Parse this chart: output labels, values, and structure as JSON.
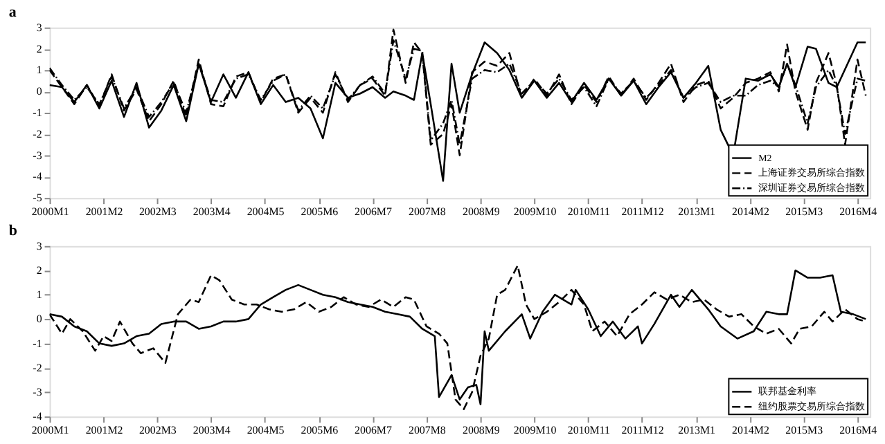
{
  "chart_data": [
    {
      "type": "line",
      "title": "a",
      "xlim": [
        "2000-01",
        "2016-07"
      ],
      "ylim": [
        -5,
        3
      ],
      "yticks": [
        -5,
        -4,
        -3,
        -2,
        -1,
        0,
        1,
        2,
        3
      ],
      "xticks": [
        {
          "value": "2000-01",
          "label": "2000M1"
        },
        {
          "value": "2001-02",
          "label": "2001M2"
        },
        {
          "value": "2002-03",
          "label": "2002M3"
        },
        {
          "value": "2003-04",
          "label": "2003M4"
        },
        {
          "value": "2004-05",
          "label": "2004M5"
        },
        {
          "value": "2005-06",
          "label": "2005M6"
        },
        {
          "value": "2006-07",
          "label": "2006M7"
        },
        {
          "value": "2007-08",
          "label": "2007M8"
        },
        {
          "value": "2008-09",
          "label": "2008M9"
        },
        {
          "value": "2009-10",
          "label": "2009M10"
        },
        {
          "value": "2010-11",
          "label": "2010M11"
        },
        {
          "value": "2011-12",
          "label": "2011M12"
        },
        {
          "value": "2013-01",
          "label": "2013M1"
        },
        {
          "value": "2014-02",
          "label": "2014M2"
        },
        {
          "value": "2015-03",
          "label": "2015M3"
        },
        {
          "value": "2016-04",
          "label": "2016M4"
        }
      ],
      "x": [
        "2000-01",
        "2000-04",
        "2000-07",
        "2000-10",
        "2001-01",
        "2001-04",
        "2001-07",
        "2001-10",
        "2002-01",
        "2002-04",
        "2002-07",
        "2002-10",
        "2003-01",
        "2003-04",
        "2003-07",
        "2003-10",
        "2004-01",
        "2004-04",
        "2004-07",
        "2004-10",
        "2005-01",
        "2005-04",
        "2005-07",
        "2005-10",
        "2006-01",
        "2006-04",
        "2006-07",
        "2006-10",
        "2006-12",
        "2007-03",
        "2007-05",
        "2007-07",
        "2007-09",
        "2007-12",
        "2008-02",
        "2008-04",
        "2008-07",
        "2008-10",
        "2009-01",
        "2009-04",
        "2009-07",
        "2009-10",
        "2010-01",
        "2010-04",
        "2010-07",
        "2010-10",
        "2011-01",
        "2011-04",
        "2011-07",
        "2011-10",
        "2012-01",
        "2012-04",
        "2012-07",
        "2012-10",
        "2013-01",
        "2013-04",
        "2013-07",
        "2013-10",
        "2014-01",
        "2014-04",
        "2014-07",
        "2014-09",
        "2014-11",
        "2015-01",
        "2015-04",
        "2015-06",
        "2015-09",
        "2015-11",
        "2016-01",
        "2016-04",
        "2016-06"
      ],
      "grid": false,
      "legend": "bottom right",
      "series": [
        {
          "name": "M2",
          "color": "#000000",
          "line_style": "solid",
          "x": [
            "2000-01",
            "2000-04",
            "2000-07",
            "2000-10",
            "2001-01",
            "2001-04",
            "2001-07",
            "2001-10",
            "2002-01",
            "2002-04",
            "2002-07",
            "2002-10",
            "2003-01",
            "2003-04",
            "2003-07",
            "2003-10",
            "2004-01",
            "2004-04",
            "2004-07",
            "2004-10",
            "2005-01",
            "2005-04",
            "2005-07",
            "2005-10",
            "2006-01",
            "2006-04",
            "2006-07",
            "2006-10",
            "2006-12",
            "2007-03",
            "2007-05",
            "2007-07",
            "2007-09",
            "2007-12",
            "2008-02",
            "2008-04",
            "2008-07",
            "2008-10",
            "2009-01",
            "2009-04",
            "2009-07",
            "2009-10",
            "2010-01",
            "2010-04",
            "2010-07",
            "2010-10",
            "2011-01",
            "2011-04",
            "2011-07",
            "2011-10",
            "2012-01",
            "2012-04",
            "2012-07",
            "2012-10",
            "2013-01",
            "2013-04",
            "2013-07",
            "2013-10",
            "2014-01",
            "2014-04",
            "2014-07",
            "2014-09",
            "2014-11",
            "2015-01",
            "2015-04",
            "2015-06",
            "2015-09",
            "2015-11",
            "2016-04",
            "2016-06"
          ],
          "values": [
            0.3,
            0.2,
            -0.5,
            0.3,
            -0.8,
            0.5,
            -1.2,
            0.4,
            -1.7,
            -0.9,
            0.3,
            -1.4,
            1.3,
            -0.5,
            0.8,
            -0.3,
            0.9,
            -0.6,
            0.3,
            -0.5,
            -0.3,
            -0.8,
            -2.2,
            0.4,
            -0.3,
            -0.1,
            0.2,
            -0.3,
            0.0,
            -0.2,
            -0.4,
            1.8,
            -0.6,
            -4.2,
            1.3,
            -1.0,
            0.8,
            2.3,
            1.8,
            1.0,
            -0.3,
            0.5,
            -0.3,
            0.4,
            -0.5,
            0.4,
            -0.4,
            0.6,
            -0.2,
            0.5,
            -0.6,
            0.2,
            0.9,
            -0.3,
            0.4,
            1.2,
            -1.8,
            -3.0,
            0.6,
            0.5,
            0.8,
            0.2,
            1.3,
            0.2,
            2.1,
            2.0,
            0.4,
            0.2,
            2.3,
            2.3
          ]
        },
        {
          "name": "上海证券交易所综合指数",
          "color": "#000000",
          "line_style": "dashed",
          "values": [
            1.0,
            0.2,
            -0.6,
            0.3,
            -0.7,
            0.8,
            -0.9,
            0.1,
            -1.4,
            -0.6,
            0.5,
            -1.2,
            1.5,
            -0.6,
            -0.7,
            0.7,
            0.9,
            -0.5,
            0.6,
            0.8,
            -1.0,
            -0.3,
            -1.0,
            0.9,
            -0.5,
            0.3,
            0.6,
            -0.2,
            2.9,
            0.4,
            2.3,
            1.8,
            -2.5,
            -2.0,
            -0.6,
            -3.0,
            0.9,
            1.4,
            1.2,
            1.8,
            -0.3,
            0.6,
            -0.2,
            0.8,
            -0.6,
            0.3,
            -0.5,
            0.7,
            -0.2,
            0.6,
            -0.4,
            0.4,
            1.3,
            -0.5,
            0.3,
            0.5,
            -0.8,
            -0.3,
            0.4,
            0.6,
            0.9,
            0.0,
            2.2,
            0.0,
            -1.8,
            0.4,
            1.8,
            0.3,
            -2.5,
            1.5,
            -0.2
          ]
        },
        {
          "name": "深圳证券交易所综合指数",
          "color": "#000000",
          "line_style": "dashdot",
          "values": [
            1.1,
            0.3,
            -0.4,
            0.2,
            -0.6,
            0.7,
            -0.8,
            0.2,
            -1.2,
            -0.5,
            0.4,
            -1.0,
            1.3,
            -0.4,
            -0.5,
            0.6,
            0.8,
            -0.4,
            0.5,
            0.8,
            -0.9,
            -0.2,
            -0.8,
            0.8,
            -0.4,
            0.3,
            0.7,
            -0.1,
            2.4,
            0.6,
            2.0,
            1.9,
            -2.3,
            -1.5,
            -0.4,
            -2.5,
            0.6,
            1.0,
            0.9,
            1.3,
            -0.1,
            0.5,
            -0.1,
            0.6,
            -0.4,
            0.2,
            -0.7,
            0.6,
            -0.1,
            0.5,
            -0.3,
            0.3,
            1.0,
            -0.3,
            0.2,
            0.4,
            -0.5,
            -0.2,
            -0.2,
            0.3,
            0.5,
            0.2,
            1.3,
            0.3,
            -1.5,
            0.2,
            1.0,
            0.2,
            -2.0,
            0.6,
            0.5
          ]
        }
      ]
    },
    {
      "type": "line",
      "title": "b",
      "xlim": [
        "2000-01",
        "2016-07"
      ],
      "ylim": [
        -4,
        3
      ],
      "yticks": [
        -4,
        -3,
        -2,
        -1,
        0,
        1,
        2,
        3
      ],
      "xticks": [
        {
          "value": "2000-01",
          "label": "2000M1"
        },
        {
          "value": "2001-02",
          "label": "2001M2"
        },
        {
          "value": "2002-03",
          "label": "2002M3"
        },
        {
          "value": "2003-04",
          "label": "2003M4"
        },
        {
          "value": "2004-05",
          "label": "2004M5"
        },
        {
          "value": "2005-06",
          "label": "2005M6"
        },
        {
          "value": "2006-07",
          "label": "2006M7"
        },
        {
          "value": "2007-08",
          "label": "2007M8"
        },
        {
          "value": "2008-09",
          "label": "2008M9"
        },
        {
          "value": "2009-10",
          "label": "2009M10"
        },
        {
          "value": "2010-11",
          "label": "2010M11"
        },
        {
          "value": "2011-12",
          "label": "2011M12"
        },
        {
          "value": "2013-01",
          "label": "2013M1"
        },
        {
          "value": "2014-02",
          "label": "2014M2"
        },
        {
          "value": "2015-03",
          "label": "2015M3"
        },
        {
          "value": "2016-04",
          "label": "2016M4"
        }
      ],
      "grid": false,
      "legend": "bottom right",
      "series": [
        {
          "name": "联邦基金利率",
          "color": "#000000",
          "line_style": "solid",
          "x": [
            "2000-01",
            "2000-04",
            "2000-07",
            "2000-10",
            "2001-01",
            "2001-04",
            "2001-07",
            "2001-10",
            "2002-01",
            "2002-04",
            "2002-07",
            "2002-10",
            "2003-01",
            "2003-04",
            "2003-07",
            "2003-10",
            "2004-01",
            "2004-04",
            "2004-07",
            "2004-10",
            "2005-01",
            "2005-04",
            "2005-07",
            "2005-10",
            "2006-01",
            "2006-04",
            "2006-07",
            "2006-10",
            "2007-01",
            "2007-04",
            "2007-07",
            "2007-10",
            "2007-11",
            "2008-02",
            "2008-04",
            "2008-06",
            "2008-08",
            "2008-09",
            "2008-10",
            "2008-11",
            "2009-03",
            "2009-07",
            "2009-09",
            "2009-12",
            "2010-03",
            "2010-07",
            "2010-08",
            "2010-11",
            "2011-02",
            "2011-05",
            "2011-08",
            "2011-11",
            "2011-12",
            "2012-03",
            "2012-07",
            "2012-09",
            "2012-12",
            "2013-04",
            "2013-07",
            "2013-11",
            "2014-03",
            "2014-06",
            "2014-09",
            "2014-11",
            "2015-01",
            "2015-04",
            "2015-07",
            "2015-10",
            "2015-12",
            "2016-03",
            "2016-06"
          ],
          "values": [
            0.2,
            0.1,
            -0.3,
            -0.5,
            -1.0,
            -1.1,
            -1.0,
            -0.7,
            -0.6,
            -0.2,
            -0.1,
            -0.1,
            -0.4,
            -0.3,
            -0.1,
            -0.1,
            0.0,
            0.6,
            0.9,
            1.2,
            1.4,
            1.2,
            1.0,
            0.9,
            0.7,
            0.6,
            0.5,
            0.3,
            0.2,
            0.1,
            -0.4,
            -0.7,
            -3.2,
            -2.3,
            -3.3,
            -2.8,
            -2.7,
            -3.5,
            -0.5,
            -1.3,
            -0.5,
            0.2,
            -0.8,
            0.3,
            1.0,
            0.6,
            1.2,
            0.4,
            -0.7,
            -0.1,
            -0.8,
            -0.3,
            -1.0,
            -0.2,
            1.0,
            0.5,
            1.2,
            0.4,
            -0.3,
            -0.8,
            -0.5,
            0.3,
            0.2,
            0.2,
            2.0,
            1.7,
            1.7,
            1.8,
            0.3,
            0.2,
            0.0
          ]
        },
        {
          "name": "纽约股票交易所综合指数",
          "color": "#000000",
          "line_style": "dashed",
          "x": [
            "2000-01",
            "2000-04",
            "2000-06",
            "2000-09",
            "2000-12",
            "2001-02",
            "2001-04",
            "2001-06",
            "2001-09",
            "2001-11",
            "2002-02",
            "2002-05",
            "2002-08",
            "2002-11",
            "2003-01",
            "2003-04",
            "2003-06",
            "2003-09",
            "2003-12",
            "2004-03",
            "2004-06",
            "2004-09",
            "2004-12",
            "2005-03",
            "2005-06",
            "2005-09",
            "2005-12",
            "2006-03",
            "2006-06",
            "2006-09",
            "2006-12",
            "2007-03",
            "2007-05",
            "2007-08",
            "2007-11",
            "2008-01",
            "2008-03",
            "2008-05",
            "2008-07",
            "2008-09",
            "2008-11",
            "2009-01",
            "2009-03",
            "2009-06",
            "2009-08",
            "2009-10",
            "2010-01",
            "2010-04",
            "2010-07",
            "2010-10",
            "2010-12",
            "2011-03",
            "2011-06",
            "2011-09",
            "2011-12",
            "2012-03",
            "2012-06",
            "2012-09",
            "2012-12",
            "2013-03",
            "2013-06",
            "2013-09",
            "2013-12",
            "2014-03",
            "2014-06",
            "2014-09",
            "2014-12",
            "2015-02",
            "2015-05",
            "2015-08",
            "2015-10",
            "2016-01",
            "2016-04",
            "2016-06"
          ],
          "values": [
            0.2,
            -0.6,
            0.0,
            -0.5,
            -1.3,
            -0.7,
            -0.9,
            -0.1,
            -1.0,
            -1.4,
            -1.2,
            -1.8,
            0.2,
            0.8,
            0.7,
            1.8,
            1.6,
            0.8,
            0.6,
            0.6,
            0.4,
            0.3,
            0.4,
            0.7,
            0.3,
            0.5,
            0.9,
            0.6,
            0.5,
            0.8,
            0.5,
            0.9,
            0.8,
            -0.3,
            -0.6,
            -1.0,
            -3.3,
            -3.7,
            -3.0,
            -1.5,
            -0.8,
            1.0,
            1.2,
            2.2,
            0.6,
            0.0,
            0.3,
            0.7,
            1.2,
            0.6,
            -0.5,
            -0.1,
            -0.7,
            0.2,
            0.6,
            1.1,
            0.8,
            1.0,
            0.7,
            0.8,
            0.4,
            0.1,
            0.2,
            -0.3,
            -0.6,
            -0.4,
            -1.0,
            -0.4,
            -0.3,
            0.3,
            -0.1,
            0.4,
            0.0,
            -0.1
          ]
        }
      ]
    }
  ]
}
